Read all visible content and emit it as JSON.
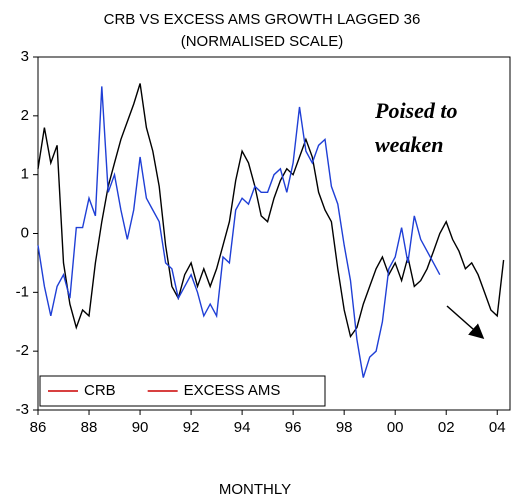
{
  "chart_data": {
    "type": "line",
    "title": [
      "CRB VS EXCESS AMS GROWTH LAGGED 36",
      "(NORMALISED SCALE)"
    ],
    "x_label": "MONTHLY",
    "annotations": [
      "Poised to",
      "weaken"
    ],
    "x": [
      1986,
      1986.25,
      1986.5,
      1986.75,
      1987,
      1987.25,
      1987.5,
      1987.75,
      1988,
      1988.25,
      1988.5,
      1988.75,
      1989,
      1989.25,
      1989.5,
      1989.75,
      1990,
      1990.25,
      1990.5,
      1990.75,
      1991,
      1991.25,
      1991.5,
      1991.75,
      1992,
      1992.25,
      1992.5,
      1992.75,
      1993,
      1993.25,
      1993.5,
      1993.75,
      1994,
      1994.25,
      1994.5,
      1994.75,
      1995,
      1995.25,
      1995.5,
      1995.75,
      1996,
      1996.25,
      1996.5,
      1996.75,
      1997,
      1997.25,
      1997.5,
      1997.75,
      1998,
      1998.25,
      1998.5,
      1998.75,
      1999,
      1999.25,
      1999.5,
      1999.75,
      2000,
      2000.25,
      2000.5,
      2000.75,
      2001,
      2001.25,
      2001.5,
      2001.75,
      2002,
      2002.25,
      2002.5,
      2002.75,
      2003,
      2003.25,
      2003.5,
      2003.75,
      2004,
      2004.25
    ],
    "series": [
      {
        "name": "CRB",
        "color": "#000000",
        "values": [
          1.1,
          1.8,
          1.2,
          1.5,
          -0.5,
          -1.2,
          -1.6,
          -1.3,
          -1.4,
          -0.5,
          0.2,
          0.8,
          1.2,
          1.6,
          1.9,
          2.2,
          2.55,
          1.8,
          1.4,
          0.8,
          -0.2,
          -0.9,
          -1.1,
          -0.7,
          -0.5,
          -0.9,
          -0.6,
          -0.9,
          -0.6,
          -0.2,
          0.2,
          0.9,
          1.4,
          1.2,
          0.8,
          0.3,
          0.2,
          0.6,
          0.9,
          1.1,
          1.0,
          1.3,
          1.6,
          1.3,
          0.7,
          0.4,
          0.2,
          -0.6,
          -1.3,
          -1.75,
          -1.6,
          -1.2,
          -0.9,
          -0.6,
          -0.4,
          -0.7,
          -0.5,
          -0.8,
          -0.4,
          -0.9,
          -0.8,
          -0.6,
          -0.3,
          0.0,
          0.2,
          -0.1,
          -0.3,
          -0.6,
          -0.5,
          -0.7,
          -1.0,
          -1.3,
          -1.4,
          -0.45
        ]
      },
      {
        "name": "EXCESS AMS",
        "color": "#1f3fd6",
        "values": [
          -0.2,
          -0.9,
          -1.4,
          -0.9,
          -0.7,
          -1.1,
          0.1,
          0.1,
          0.6,
          0.3,
          2.5,
          0.7,
          1.0,
          0.4,
          -0.1,
          0.4,
          1.3,
          0.6,
          0.4,
          0.2,
          -0.5,
          -0.6,
          -1.1,
          -0.9,
          -0.7,
          -1.0,
          -1.4,
          -1.2,
          -1.4,
          -0.4,
          -0.5,
          0.4,
          0.6,
          0.5,
          0.8,
          0.7,
          0.7,
          1.0,
          1.1,
          0.7,
          1.2,
          2.15,
          1.4,
          1.2,
          1.5,
          1.6,
          0.8,
          0.5,
          -0.2,
          -0.8,
          -1.8,
          -2.45,
          -2.1,
          -2.0,
          -1.5,
          -0.6,
          -0.4,
          0.1,
          -0.5,
          0.3,
          -0.1,
          -0.3,
          -0.5,
          -0.7,
          null,
          null,
          null,
          null,
          null,
          null,
          null,
          null,
          null,
          null
        ]
      }
    ],
    "legend_color": "#cc0000",
    "legend": "lower left",
    "xlim": [
      1986,
      2004.5
    ],
    "xticks": [
      {
        "value": 1986,
        "label": "86"
      },
      {
        "value": 1988,
        "label": "88"
      },
      {
        "value": 1990,
        "label": "90"
      },
      {
        "value": 1992,
        "label": "92"
      },
      {
        "value": 1994,
        "label": "94"
      },
      {
        "value": 1996,
        "label": "96"
      },
      {
        "value": 1998,
        "label": "98"
      },
      {
        "value": 2000,
        "label": "00"
      },
      {
        "value": 2002,
        "label": "02"
      },
      {
        "value": 2004,
        "label": "04"
      }
    ],
    "ylim": [
      -3,
      3
    ],
    "yticks": [
      -3,
      -2,
      -1,
      0,
      1,
      2,
      3
    ]
  }
}
